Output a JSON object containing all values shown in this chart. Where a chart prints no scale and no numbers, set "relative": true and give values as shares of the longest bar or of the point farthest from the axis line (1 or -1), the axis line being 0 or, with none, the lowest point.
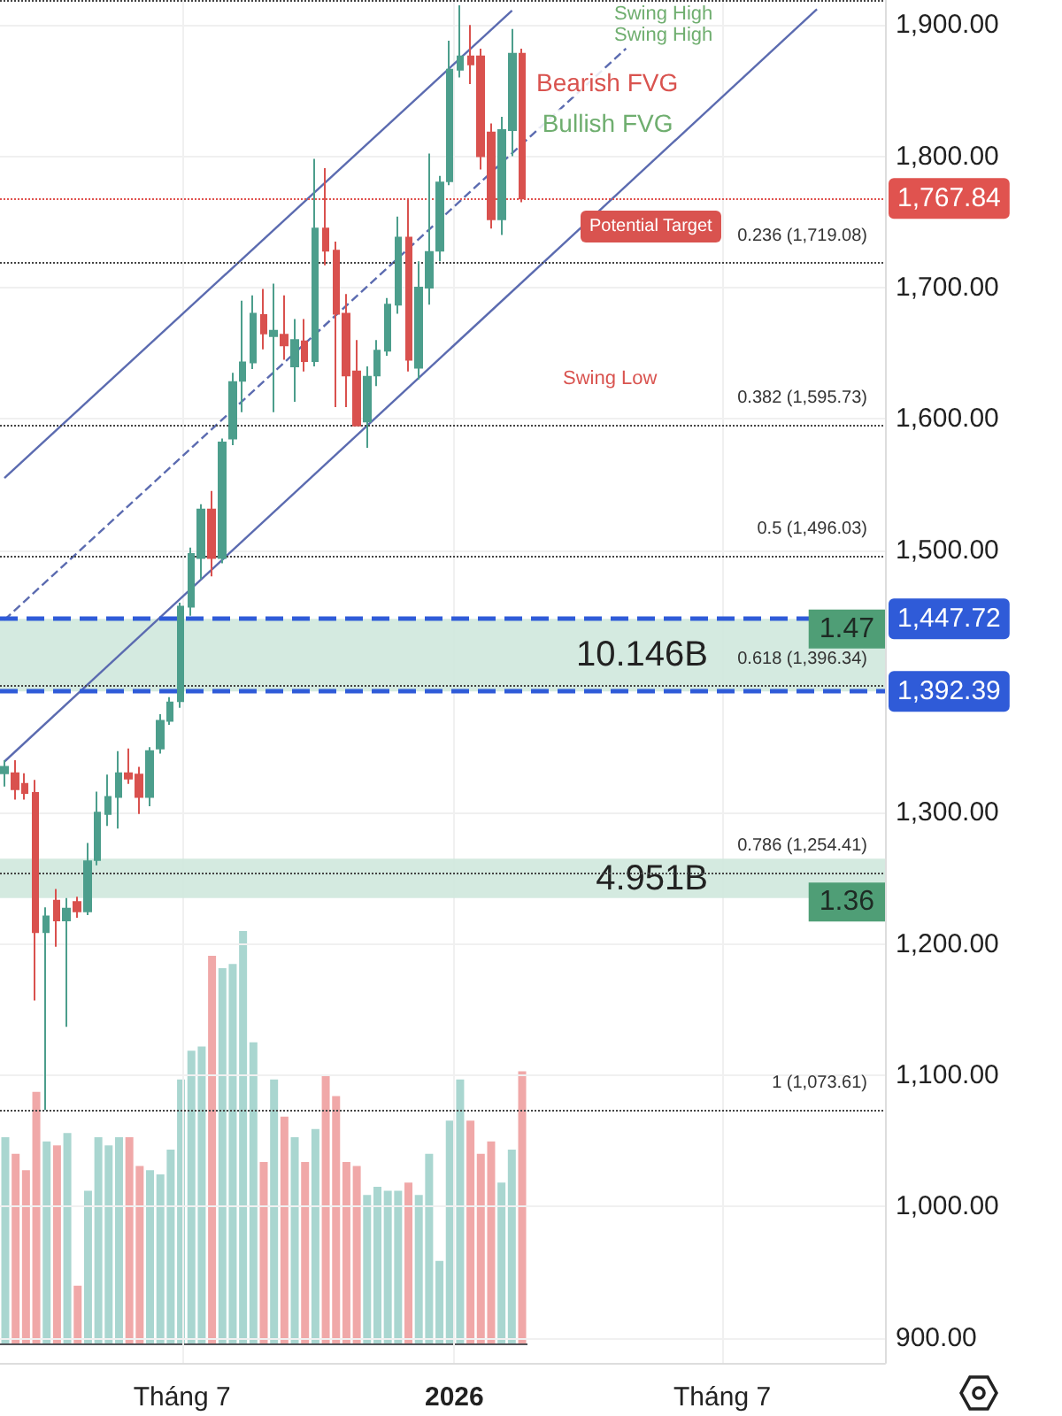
{
  "chart_data": [
    {
      "type": "candlestick",
      "x": [
        "2025-03-03",
        "2025-03-10",
        "2025-03-17",
        "2025-03-24",
        "2025-03-31",
        "2025-04-07",
        "2025-04-14",
        "2025-04-21",
        "2025-04-28",
        "2025-05-05",
        "2025-05-12",
        "2025-05-19",
        "2025-05-26",
        "2025-06-02",
        "2025-06-09",
        "2025-06-16",
        "2025-06-23",
        "2025-06-30",
        "2025-07-07",
        "2025-07-14",
        "2025-07-21",
        "2025-07-28",
        "2025-08-04",
        "2025-08-11",
        "2025-08-18",
        "2025-08-25",
        "2025-09-01",
        "2025-09-08",
        "2025-09-15",
        "2025-09-22",
        "2025-09-29",
        "2025-10-06",
        "2025-10-13",
        "2025-10-20",
        "2025-10-27",
        "2025-11-03",
        "2025-11-10",
        "2025-11-17",
        "2025-11-24",
        "2025-12-01",
        "2025-12-08",
        "2025-12-15",
        "2025-12-22",
        "2025-12-29",
        "2026-01-05",
        "2026-01-12",
        "2026-01-19",
        "2026-01-26",
        "2026-02-02",
        "2026-02-09",
        "2026-02-16"
      ],
      "ohlc": [
        [
          1330,
          1340,
          1320,
          1335
        ],
        [
          1330,
          1340,
          1310,
          1318
        ],
        [
          1322,
          1330,
          1310,
          1315
        ],
        [
          1315,
          1325,
          1157,
          1209
        ],
        [
          1209,
          1228,
          1073.61,
          1221
        ],
        [
          1233,
          1242,
          1198,
          1218
        ],
        [
          1218,
          1235,
          1137,
          1227
        ],
        [
          1232,
          1236,
          1220,
          1225
        ],
        [
          1225,
          1277,
          1222,
          1263
        ],
        [
          1264,
          1316,
          1260,
          1300
        ],
        [
          1299,
          1329,
          1290,
          1312
        ],
        [
          1312,
          1347,
          1288,
          1330
        ],
        [
          1330,
          1349,
          1322,
          1326
        ],
        [
          1329,
          1335,
          1299,
          1312
        ],
        [
          1312,
          1350,
          1305,
          1347
        ],
        [
          1349,
          1375,
          1345,
          1370
        ],
        [
          1370,
          1388,
          1367,
          1384
        ],
        [
          1385,
          1460,
          1380,
          1457
        ],
        [
          1457,
          1502,
          1450,
          1497
        ],
        [
          1494,
          1535,
          1478,
          1531
        ],
        [
          1531,
          1545,
          1480,
          1494
        ],
        [
          1494,
          1585,
          1490,
          1582
        ],
        [
          1585,
          1635,
          1580,
          1628
        ],
        [
          1629,
          1690,
          1605,
          1643
        ],
        [
          1643,
          1694,
          1638,
          1680
        ],
        [
          1679,
          1699,
          1653,
          1665
        ],
        [
          1663,
          1703,
          1605,
          1667
        ],
        [
          1664,
          1694,
          1645,
          1656
        ],
        [
          1640,
          1676,
          1613,
          1660
        ],
        [
          1659,
          1676,
          1636,
          1644
        ],
        [
          1644,
          1798,
          1640,
          1745
        ],
        [
          1745,
          1791,
          1717,
          1728
        ],
        [
          1728,
          1735,
          1609,
          1680
        ],
        [
          1680,
          1695,
          1609,
          1633
        ],
        [
          1636,
          1660,
          1595,
          1595
        ],
        [
          1598,
          1640,
          1578,
          1632
        ],
        [
          1633,
          1660,
          1625,
          1652
        ],
        [
          1652,
          1692,
          1648,
          1687
        ],
        [
          1687,
          1754,
          1680,
          1738
        ],
        [
          1738,
          1768,
          1636,
          1645
        ],
        [
          1639,
          1720,
          1630,
          1700
        ],
        [
          1700,
          1802,
          1687,
          1727
        ],
        [
          1728,
          1785,
          1720,
          1780
        ],
        [
          1781,
          1888,
          1778,
          1866
        ],
        [
          1866,
          1915,
          1860,
          1876
        ],
        [
          1876,
          1900,
          1855,
          1870
        ],
        [
          1876,
          1882,
          1790,
          1800
        ],
        [
          1818,
          1825,
          1745,
          1752
        ],
        [
          1752,
          1830,
          1740,
          1820
        ],
        [
          1820,
          1897,
          1800,
          1878
        ],
        [
          1878,
          1882,
          1765,
          1767.84
        ]
      ],
      "colors": [
        "#4c9e8c",
        "#d9514e",
        "#d9514e",
        "#d9514e",
        "#4c9e8c",
        "#d9514e",
        "#4c9e8c",
        "#d9514e",
        "#4c9e8c",
        "#4c9e8c",
        "#4c9e8c",
        "#4c9e8c",
        "#d9514e",
        "#d9514e",
        "#4c9e8c",
        "#4c9e8c",
        "#4c9e8c",
        "#4c9e8c",
        "#4c9e8c",
        "#4c9e8c",
        "#d9514e",
        "#4c9e8c",
        "#4c9e8c",
        "#4c9e8c",
        "#4c9e8c",
        "#d9514e",
        "#4c9e8c",
        "#d9514e",
        "#4c9e8c",
        "#d9514e",
        "#4c9e8c",
        "#d9514e",
        "#d9514e",
        "#d9514e",
        "#d9514e",
        "#4c9e8c",
        "#4c9e8c",
        "#4c9e8c",
        "#4c9e8c",
        "#d9514e",
        "#4c9e8c",
        "#4c9e8c",
        "#4c9e8c",
        "#4c9e8c",
        "#4c9e8c",
        "#d9514e",
        "#d9514e",
        "#d9514e",
        "#4c9e8c",
        "#4c9e8c",
        "#d9514e"
      ],
      "series": [
        {
          "type": "line",
          "x": [
            "2025-03-03",
            "2026-02-09"
          ],
          "values": [
            1555,
            1911
          ],
          "color": "#5b6bb0",
          "line_style": "solid"
        },
        {
          "type": "line",
          "x": [
            "2025-03-03",
            "2026-04-27"
          ],
          "values": [
            1447,
            1882
          ],
          "color": "#5b6bb0",
          "line_style": "dashed"
        },
        {
          "type": "line",
          "x": [
            "2025-03-03",
            "2026-09-03"
          ],
          "values": [
            1339,
            1912
          ],
          "color": "#5b6bb0",
          "line_style": "solid"
        }
      ],
      "xlim": [
        "2025-02-28",
        "2026-10-19"
      ],
      "xticks": [
        {
          "value": "2025-07-01",
          "label": "Tháng 7"
        },
        {
          "value": "2026-01-01",
          "label": "2026"
        },
        {
          "value": "2026-07-01",
          "label": "Tháng 7"
        }
      ],
      "ylim": [
        881,
        1919
      ],
      "yticks": [
        {
          "value": 900,
          "label": "900.00"
        },
        {
          "value": 1000,
          "label": "1,000.00"
        },
        {
          "value": 1100,
          "label": "1,100.00"
        },
        {
          "value": 1200,
          "label": "1,200.00"
        },
        {
          "value": 1300,
          "label": "1,300.00"
        },
        {
          "value": 1500,
          "label": "1,500.00"
        },
        {
          "value": 1600,
          "label": "1,600.00"
        },
        {
          "value": 1700,
          "label": "1,700.00"
        },
        {
          "value": 1800,
          "label": "1,800.00"
        },
        {
          "value": 1900,
          "label": "1,900.00"
        }
      ],
      "grid": true,
      "ref_lines": [
        {
          "axis": "y",
          "value": 1918.45,
          "line_style": "dotted"
        },
        {
          "axis": "y",
          "value": 1719.08,
          "label": "0.236 (1,719.08)",
          "line_style": "dotted"
        },
        {
          "axis": "y",
          "value": 1595.73,
          "label": "0.382 (1,595.73)",
          "line_style": "dotted"
        },
        {
          "axis": "y",
          "value": 1496.03,
          "label": "0.5 (1,496.03)",
          "line_style": "dotted"
        },
        {
          "axis": "y",
          "value": 1396.34,
          "label": "0.618 (1,396.34)",
          "line_style": "dotted"
        },
        {
          "axis": "y",
          "value": 1254.41,
          "label": "0.786 (1,254.41)",
          "line_style": "dotted"
        },
        {
          "axis": "y",
          "value": 1073.61,
          "label": "1 (1,073.61)",
          "line_style": "dotted"
        },
        {
          "axis": "y",
          "value": 1767.84,
          "label": "1,767.84",
          "color": "#e0534f",
          "line_style": "dotted"
        },
        {
          "axis": "y",
          "value": 1447.72,
          "label": "1,447.72",
          "color": "#2f5bd8",
          "line_style": "dashed"
        },
        {
          "axis": "y",
          "value": 1392.39,
          "label": "1,392.39",
          "color": "#2f5bd8",
          "line_style": "dashed"
        }
      ],
      "bands": [
        {
          "axis": "y",
          "from": 1392.39,
          "to": 1447.72,
          "label": "10.146B",
          "color": "#cfe8dd"
        },
        {
          "axis": "y",
          "from": 1235,
          "to": 1265,
          "label": "4.951B",
          "color": "#cfe8dd"
        }
      ],
      "annotations": [
        "Swing High",
        "Swing High",
        "Swing Low",
        "Potential Target",
        {
          "text": "Bearish FVG",
          "x": "2026-02-23",
          "y": 1856
        },
        {
          "text": "Bullish FVG",
          "x": "2026-02-27",
          "y": 1825
        },
        {
          "text": "1.47",
          "y": 1440
        },
        {
          "text": "1.36",
          "y": 1232
        }
      ]
    },
    {
      "type": "bar",
      "relative": true,
      "categories": [
        null,
        null,
        null,
        null,
        null,
        null,
        null,
        null,
        null,
        null,
        null,
        null,
        null,
        null,
        null,
        null,
        null,
        null,
        null,
        null,
        null,
        null,
        null,
        null,
        null,
        null,
        null,
        null,
        null,
        null,
        null,
        null,
        null,
        null,
        null,
        null,
        null,
        null,
        null,
        null,
        null,
        null,
        null,
        null,
        null,
        null,
        null,
        null,
        null,
        null,
        null
      ],
      "values": [
        0.5,
        0.46,
        0.42,
        0.61,
        0.49,
        0.48,
        0.51,
        0.14,
        0.37,
        0.5,
        0.48,
        0.5,
        0.5,
        0.43,
        0.42,
        0.41,
        0.47,
        0.64,
        0.71,
        0.72,
        0.94,
        0.91,
        0.92,
        1,
        0.73,
        0.44,
        0.64,
        0.55,
        0.5,
        0.44,
        0.52,
        0.65,
        0.6,
        0.44,
        0.43,
        0.36,
        0.38,
        0.37,
        0.37,
        0.39,
        0.36,
        0.46,
        0.2,
        0.54,
        0.64,
        0.54,
        0.46,
        0.49,
        0.39,
        0.47,
        0.66
      ],
      "colors": [
        "#a9d6d0",
        "#f0a8a8",
        "#f0a8a8",
        "#f0a8a8",
        "#a9d6d0",
        "#f0a8a8",
        "#a9d6d0",
        "#f0a8a8",
        "#a9d6d0",
        "#a9d6d0",
        "#a9d6d0",
        "#a9d6d0",
        "#f0a8a8",
        "#f0a8a8",
        "#a9d6d0",
        "#a9d6d0",
        "#a9d6d0",
        "#a9d6d0",
        "#a9d6d0",
        "#a9d6d0",
        "#f0a8a8",
        "#a9d6d0",
        "#a9d6d0",
        "#a9d6d0",
        "#a9d6d0",
        "#f0a8a8",
        "#a9d6d0",
        "#f0a8a8",
        "#a9d6d0",
        "#f0a8a8",
        "#a9d6d0",
        "#f0a8a8",
        "#f0a8a8",
        "#f0a8a8",
        "#f0a8a8",
        "#a9d6d0",
        "#a9d6d0",
        "#a9d6d0",
        "#a9d6d0",
        "#f0a8a8",
        "#a9d6d0",
        "#a9d6d0",
        "#a9d6d0",
        "#a9d6d0",
        "#a9d6d0",
        "#f0a8a8",
        "#f0a8a8",
        "#f0a8a8",
        "#a9d6d0",
        "#a9d6d0",
        "#f0a8a8"
      ]
    }
  ]
}
